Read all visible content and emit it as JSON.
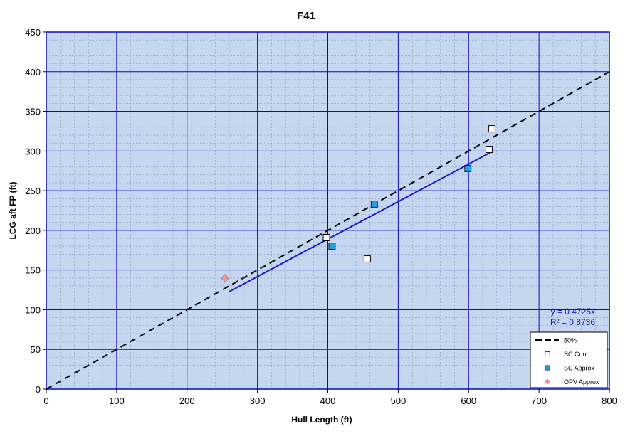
{
  "chart_data": {
    "type": "scatter",
    "title": "F41",
    "xlabel": "Hull Length (ft)",
    "ylabel": "LCG aft FP (ft)",
    "xlim": [
      0,
      800
    ],
    "ylim": [
      0,
      450
    ],
    "xticks": [
      "0",
      "100",
      "200",
      "300",
      "400",
      "500",
      "600",
      "700",
      "800"
    ],
    "yticks": [
      "0",
      "50",
      "100",
      "150",
      "200",
      "250",
      "300",
      "350",
      "400",
      "450"
    ],
    "grid": true,
    "legend_position": "bottom-right",
    "series": [
      {
        "name": "50%",
        "kind": "dashed-line",
        "color": "#000000",
        "points": [
          [
            0,
            0
          ],
          [
            800,
            400
          ]
        ]
      },
      {
        "name": "SC Conc",
        "kind": "square-open",
        "color": "#ffffff",
        "points": [
          [
            398,
            191
          ],
          [
            456,
            164
          ],
          [
            629,
            302
          ],
          [
            633,
            328
          ]
        ]
      },
      {
        "name": "SC Approx",
        "kind": "square-filled",
        "color": "#1fa0e0",
        "points": [
          [
            406,
            180
          ],
          [
            466,
            233
          ],
          [
            599,
            278
          ]
        ]
      },
      {
        "name": "OPV Approx",
        "kind": "diamond",
        "color": "#e39a9a",
        "points": [
          [
            254,
            140
          ]
        ]
      }
    ],
    "trendline": {
      "color": "#1a1acc",
      "slope": 0.4725,
      "x_range": [
        254,
        633
      ],
      "equation": "y = 0.4725x",
      "r_squared": "R² = 0.8736"
    }
  },
  "colors": {
    "plot_background": "#c5d6ee",
    "major_grid": "#0a0ac0",
    "minor_grid": "#8aa0c8"
  }
}
